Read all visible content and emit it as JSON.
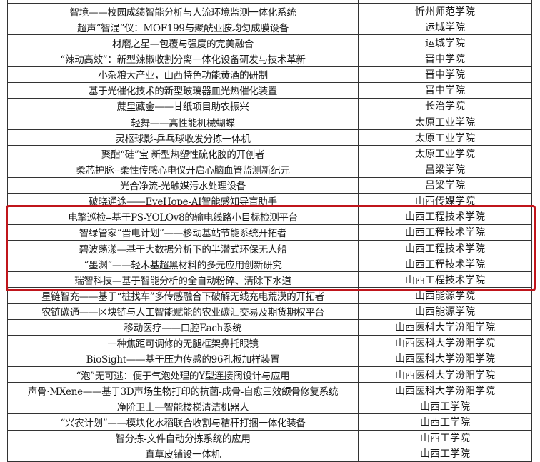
{
  "highlight_color": "#c0151b",
  "rows": [
    {
      "project": "",
      "school": ""
    },
    {
      "project": "智境——校园成绩智能分析与人流环境监测一体化系统",
      "school": "忻州师范学院"
    },
    {
      "project": "超声“智混”仪：MOF199与聚酰亚胺均匀成膜设备",
      "school": "运城学院"
    },
    {
      "project": "材磨之星—包覆与强度的完美融合",
      "school": "运城学院"
    },
    {
      "project": "“辣动高效”：新型辣椒收割分离一体化设备研发与技术革新",
      "school": "晋中学院"
    },
    {
      "project": "小杂粮大产业，山西特色功能黄酒的研制",
      "school": "晋中学院"
    },
    {
      "project": "基于光催化技术的新型玻璃器皿光热催化装置",
      "school": "晋中学院"
    },
    {
      "project": "蔗里藏金——甘纸项目助农振兴",
      "school": "长治学院"
    },
    {
      "project": "轻舞——高性能机械蝴蝶",
      "school": "太原工业学院"
    },
    {
      "project": "灵枢球影-乒乓球收发分拣一体机",
      "school": "太原工业学院"
    },
    {
      "project": "聚酯“硅”宝  新型热塑性硫化胶的开创者",
      "school": "太原工业学院"
    },
    {
      "project": "柔芯护脉--柔性传感心电仪开启心脑血管监测新纪元",
      "school": "吕梁学院"
    },
    {
      "project": "光合净流-光触媒污水处理设备",
      "school": "吕梁学院"
    },
    {
      "project": "破晓通途——EyeHope-AI智能感知导盲助手",
      "school": "山西传媒学院"
    },
    {
      "project": "电擎巡检--基于PS-YOLOv8的输电线路小目标检测平台",
      "school": "山西工程技术学院"
    },
    {
      "project": "智绿管家“晋电计划”——移动基站节能系统开拓者",
      "school": "山西工程技术学院"
    },
    {
      "project": "碧波荡漾—基于大数据分析下的半潜式环保无人船",
      "school": "山西工程技术学院"
    },
    {
      "project": "“墨渊”——轻木基超黑材料的多元应用创新研究",
      "school": "山西工程技术学院"
    },
    {
      "project": "瑞智科技—基于智能分析的全自动粉碎、清除下水道",
      "school": "山西工程技术学院"
    },
    {
      "project": "星链智充——基于“桩找车”多传感融合下破解无线充电荒漠的开拓者",
      "school": "山西能源学院"
    },
    {
      "project": "农链碳通——区块链与人工智能赋能的农业碳汇交易及期货期权平台",
      "school": "山西能源学院"
    },
    {
      "project": "移动医疗——口腔Each系统",
      "school": "山西医科大学汾阳学院"
    },
    {
      "project": "一种焦距可调修的无腿框架鼻托眼镜",
      "school": "山西医科大学汾阳学院"
    },
    {
      "project": "BioSight——基于压力传感的96孔板加样装置",
      "school": "山西医科大学汾阳学院"
    },
    {
      "project": "“泡”无可逃：便于气泡处理的Y型连接阀设计与应用",
      "school": "山西医科大学汾阳学院"
    },
    {
      "project": "声骨·MXene——基于3D声场生物打印的抗菌-成骨-自愈三效颌骨修复系统",
      "school": "山西医科大学汾阳学院"
    },
    {
      "project": "净阶卫士—智能楼梯清洁机器人",
      "school": "山西工学院"
    },
    {
      "project": "“兴农计划”——模块化水稻联合收割与秸秆打捆一体化装备",
      "school": "山西工学院"
    },
    {
      "project": "智分拣-文件自动分拣系统的应用",
      "school": "山西工学院"
    },
    {
      "project": "直草皮铺设一体机",
      "school": "山西工学院"
    }
  ]
}
